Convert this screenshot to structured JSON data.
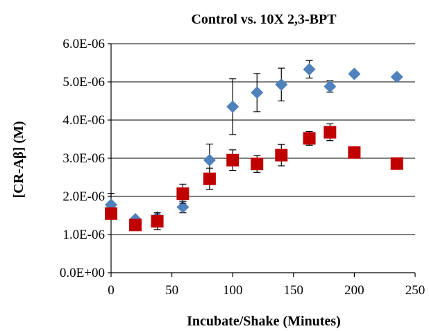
{
  "chart_data": {
    "type": "scatter",
    "title": "Control vs. 10X 2,3-BPT",
    "xlabel": "Incubate/Shake (Minutes)",
    "ylabel": "[CR-Aβ] (M)",
    "xlim": [
      0,
      250
    ],
    "ylim": [
      0,
      6e-06
    ],
    "x_ticks": [
      0,
      50,
      100,
      150,
      200,
      250
    ],
    "y_ticks": [
      0,
      1e-06,
      2e-06,
      3e-06,
      4e-06,
      5e-06,
      6e-06
    ],
    "x_tick_labels": [
      "0",
      "50",
      "100",
      "150",
      "200",
      "250"
    ],
    "y_tick_labels": [
      "0.0E+00",
      "1.0E-06",
      "2.0E-06",
      "3.0E-06",
      "4.0E-06",
      "5.0E-06",
      "6.0E-06"
    ],
    "grid": "horizontal",
    "series": [
      {
        "marker": "diamond",
        "color": "#4F81BD",
        "x": [
          0,
          20,
          38,
          59,
          81,
          100,
          120,
          140,
          163,
          180,
          200,
          235
        ],
        "y": [
          1.78e-06,
          1.4e-06,
          1.45e-06,
          1.72e-06,
          2.95e-06,
          4.35e-06,
          4.72e-06,
          4.93e-06,
          5.33e-06,
          4.88e-06,
          5.21e-06,
          5.13e-06
        ],
        "err": [
          3e-07,
          5e-08,
          5e-08,
          1.5e-07,
          4.2e-07,
          7.3e-07,
          5e-07,
          4.3e-07,
          2.3e-07,
          1.5e-07,
          0,
          0
        ]
      },
      {
        "marker": "square",
        "color": "#C00000",
        "x": [
          0,
          20,
          38,
          59,
          81,
          100,
          120,
          140,
          163,
          180,
          200,
          235
        ],
        "y": [
          1.55e-06,
          1.25e-06,
          1.35e-06,
          2.07e-06,
          2.46e-06,
          2.95e-06,
          2.85e-06,
          3.08e-06,
          3.52e-06,
          3.68e-06,
          3.15e-06,
          2.86e-06
        ],
        "err": [
          0,
          8e-08,
          2.2e-07,
          2.5e-07,
          2.8e-07,
          2.7e-07,
          2.2e-07,
          2.8e-07,
          1.8e-07,
          2.2e-07,
          0,
          0
        ]
      }
    ]
  }
}
